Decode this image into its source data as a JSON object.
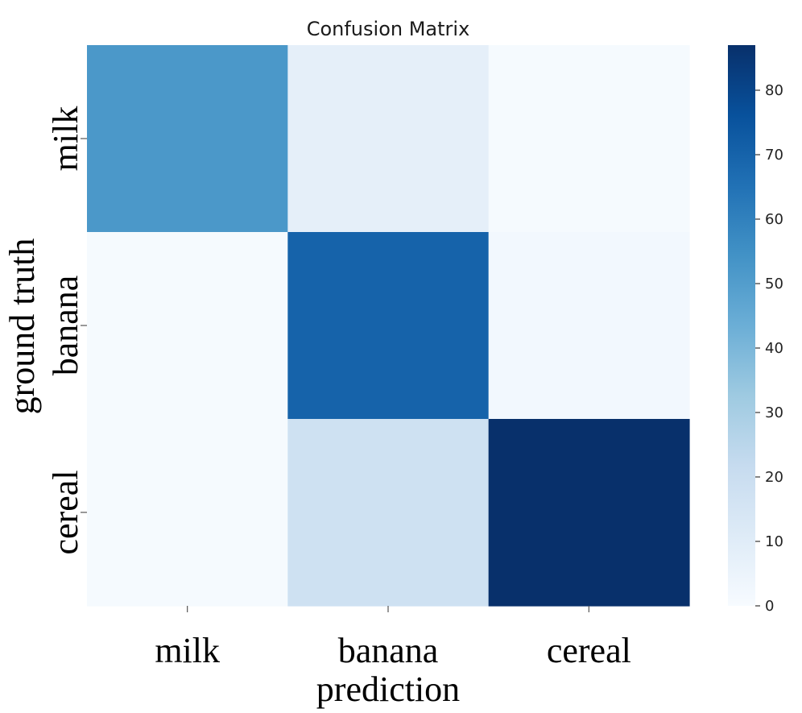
{
  "chart_data": {
    "type": "heatmap",
    "title": "Confusion Matrix",
    "xlabel": "prediction",
    "ylabel": "ground truth",
    "x_categories": [
      "milk",
      "banana",
      "cereal"
    ],
    "y_categories": [
      "milk",
      "banana",
      "cereal"
    ],
    "values": [
      [
        52,
        8,
        1
      ],
      [
        1,
        70,
        2
      ],
      [
        1,
        18,
        87
      ]
    ],
    "colorbar": {
      "min": 0,
      "max": 87,
      "ticks": [
        0,
        10,
        20,
        30,
        40,
        50,
        60,
        70,
        80
      ],
      "colormap": "Blues"
    },
    "grid": false
  }
}
